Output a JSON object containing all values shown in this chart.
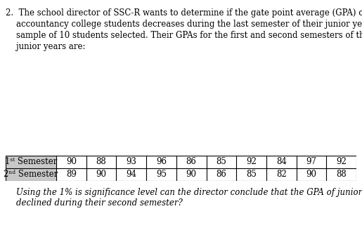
{
  "paragraph_line1": "2.  The school director of SSC-R wants to determine if the gate point average (GPA) of",
  "paragraph_line2": "    accountancy college students decreases during the last semester of their junior year. A",
  "paragraph_line3": "    sample of 10 students selected. Their GPAs for the first and second semesters of their",
  "paragraph_line4": "    junior years are:",
  "dark_bar_color": "#2d2d2d",
  "label_bg_color": "#c8c8c8",
  "sem1_values": [
    90,
    88,
    93,
    96,
    86,
    85,
    92,
    84,
    97,
    92
  ],
  "sem2_values": [
    89,
    90,
    94,
    95,
    90,
    86,
    85,
    82,
    90,
    88
  ],
  "footer_line1": "    Using the 1% is significance level can the director conclude that the GPA of juniors",
  "footer_line2": "    declined during their second semester?",
  "bg_color": "#ffffff",
  "text_color": "#000000",
  "body_font_size": 8.5,
  "footer_font_size": 8.5,
  "table_font_size": 8.5
}
